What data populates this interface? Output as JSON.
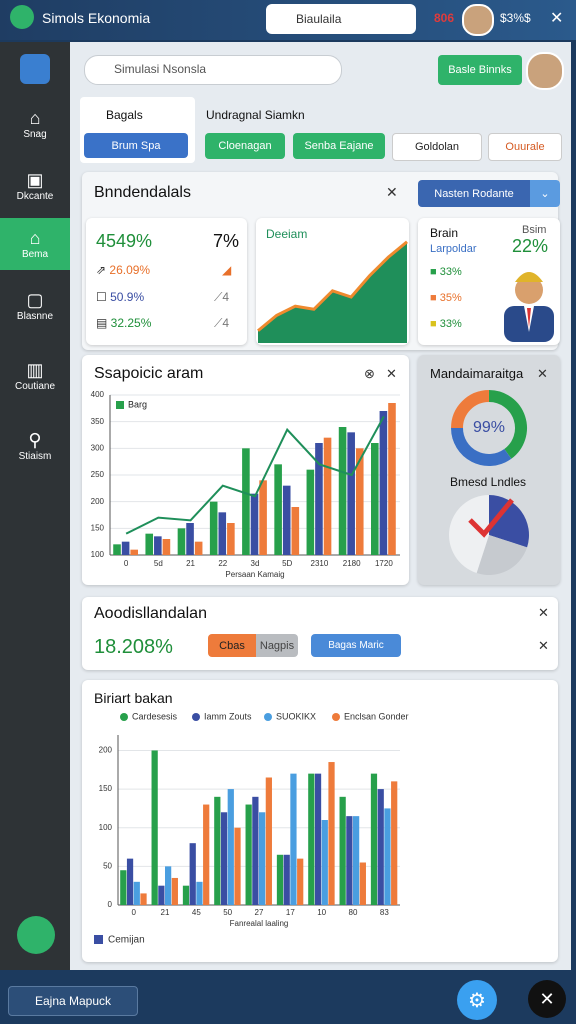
{
  "header": {
    "app_title": "Simols Ekonomia",
    "search": "Biaulaila",
    "badge": "806",
    "balance": "$3%$"
  },
  "sidebar": {
    "items": [
      "Snag",
      "Dkcante",
      "Bema",
      "Blasnne",
      "Coutiane",
      "Stiaism"
    ]
  },
  "toolbar": {
    "search": "Simulasi Nsonsla",
    "button": "Basle Binnks"
  },
  "tabs": {
    "active_tab": "Bagals",
    "active_button": "Brum Spa",
    "label": "Undragnal Siamkn",
    "buttons": [
      "Cloenagan",
      "Senba Eajane",
      "Goldolan",
      "Ouurale"
    ]
  },
  "summary": {
    "title": "Bnndendalals",
    "dropdown": "Nasten Rodante",
    "kpi": {
      "main": "4549%",
      "side": "7%",
      "rows": [
        "26.09%",
        "50.9%",
        "32.25%"
      ],
      "marks": [
        "4",
        "4"
      ]
    },
    "profile": {
      "name": "Brain",
      "role": "Larpoldar",
      "tag": "Bsim",
      "value": "22%",
      "rows": [
        "33%",
        "35%",
        "33%"
      ]
    }
  },
  "alloc": {
    "title": "Aoodisllandalan",
    "value": "18.208%",
    "toggle": [
      "Cbas",
      "Nagpis"
    ],
    "dropdown": "Bagas Maric"
  },
  "footer": {
    "dropdown": "Eajna Mapuck"
  },
  "chart_data": [
    {
      "type": "bar-line",
      "title": "Ssapoicic aram",
      "x_label": "Persaan Kamaig",
      "categories": [
        "0",
        "5d",
        "21",
        "22",
        "3d",
        "5D",
        "2310",
        "2180",
        "1720"
      ],
      "series": [
        {
          "name": "Barg",
          "color": "#27a04b",
          "values": [
            120,
            140,
            150,
            200,
            300,
            270,
            260,
            340,
            310
          ]
        },
        {
          "color": "#3a4ea3",
          "values": [
            125,
            135,
            160,
            180,
            215,
            230,
            310,
            330,
            370
          ]
        },
        {
          "color": "#ee7b3b",
          "values": [
            110,
            130,
            125,
            160,
            240,
            190,
            320,
            300,
            385
          ]
        },
        {
          "type": "line",
          "color": "#1f8f5a",
          "values": [
            140,
            170,
            165,
            230,
            210,
            335,
            270,
            250,
            360
          ]
        }
      ],
      "ylim": [
        100,
        400
      ],
      "yticks": [
        100,
        150,
        200,
        250,
        300,
        350,
        400
      ],
      "grid": true
    },
    {
      "type": "donut",
      "title": "Mandaimaraitga",
      "center_label": "99%",
      "values": [
        40,
        35,
        25
      ],
      "colors": [
        "#27a04b",
        "#3a6fc4",
        "#ee7b3b"
      ]
    },
    {
      "type": "pie",
      "title": "Bmesd Lndles",
      "values": [
        30,
        25,
        45
      ],
      "colors": [
        "#3a4ea3",
        "#c6cacf",
        "#eef0f2"
      ]
    },
    {
      "type": "grouped-bar",
      "title": "Biriart bakan",
      "x_label": "Fanrealal laaling",
      "note": "Cemijan",
      "categories": [
        "0",
        "21",
        "45",
        "50",
        "27",
        "17",
        "10",
        "80",
        "83"
      ],
      "series": [
        {
          "name": "Cardesesis",
          "color": "#27a04b",
          "values": [
            45,
            200,
            25,
            140,
            130,
            65,
            170,
            140,
            170
          ]
        },
        {
          "name": "Iamm Zouts",
          "color": "#3a4ea3",
          "values": [
            60,
            25,
            80,
            120,
            140,
            65,
            170,
            115,
            150
          ]
        },
        {
          "name": "SUOKIKX",
          "color": "#4a9ee0",
          "values": [
            30,
            50,
            30,
            150,
            120,
            170,
            110,
            115,
            125
          ]
        },
        {
          "name": "Enclsan Gonder",
          "color": "#ee7b3b",
          "values": [
            15,
            35,
            130,
            100,
            165,
            60,
            185,
            55,
            160
          ]
        }
      ],
      "ylim": [
        0,
        220
      ],
      "yticks": [
        0,
        50,
        100,
        150,
        200
      ],
      "grid": true
    },
    {
      "type": "area-line",
      "title": "Deeiam",
      "values": [
        8,
        18,
        24,
        22,
        34,
        30,
        44,
        56,
        66
      ],
      "ylim": [
        0,
        75
      ],
      "color": "#1f8f5a",
      "line_color": "#ef8a2e"
    }
  ]
}
